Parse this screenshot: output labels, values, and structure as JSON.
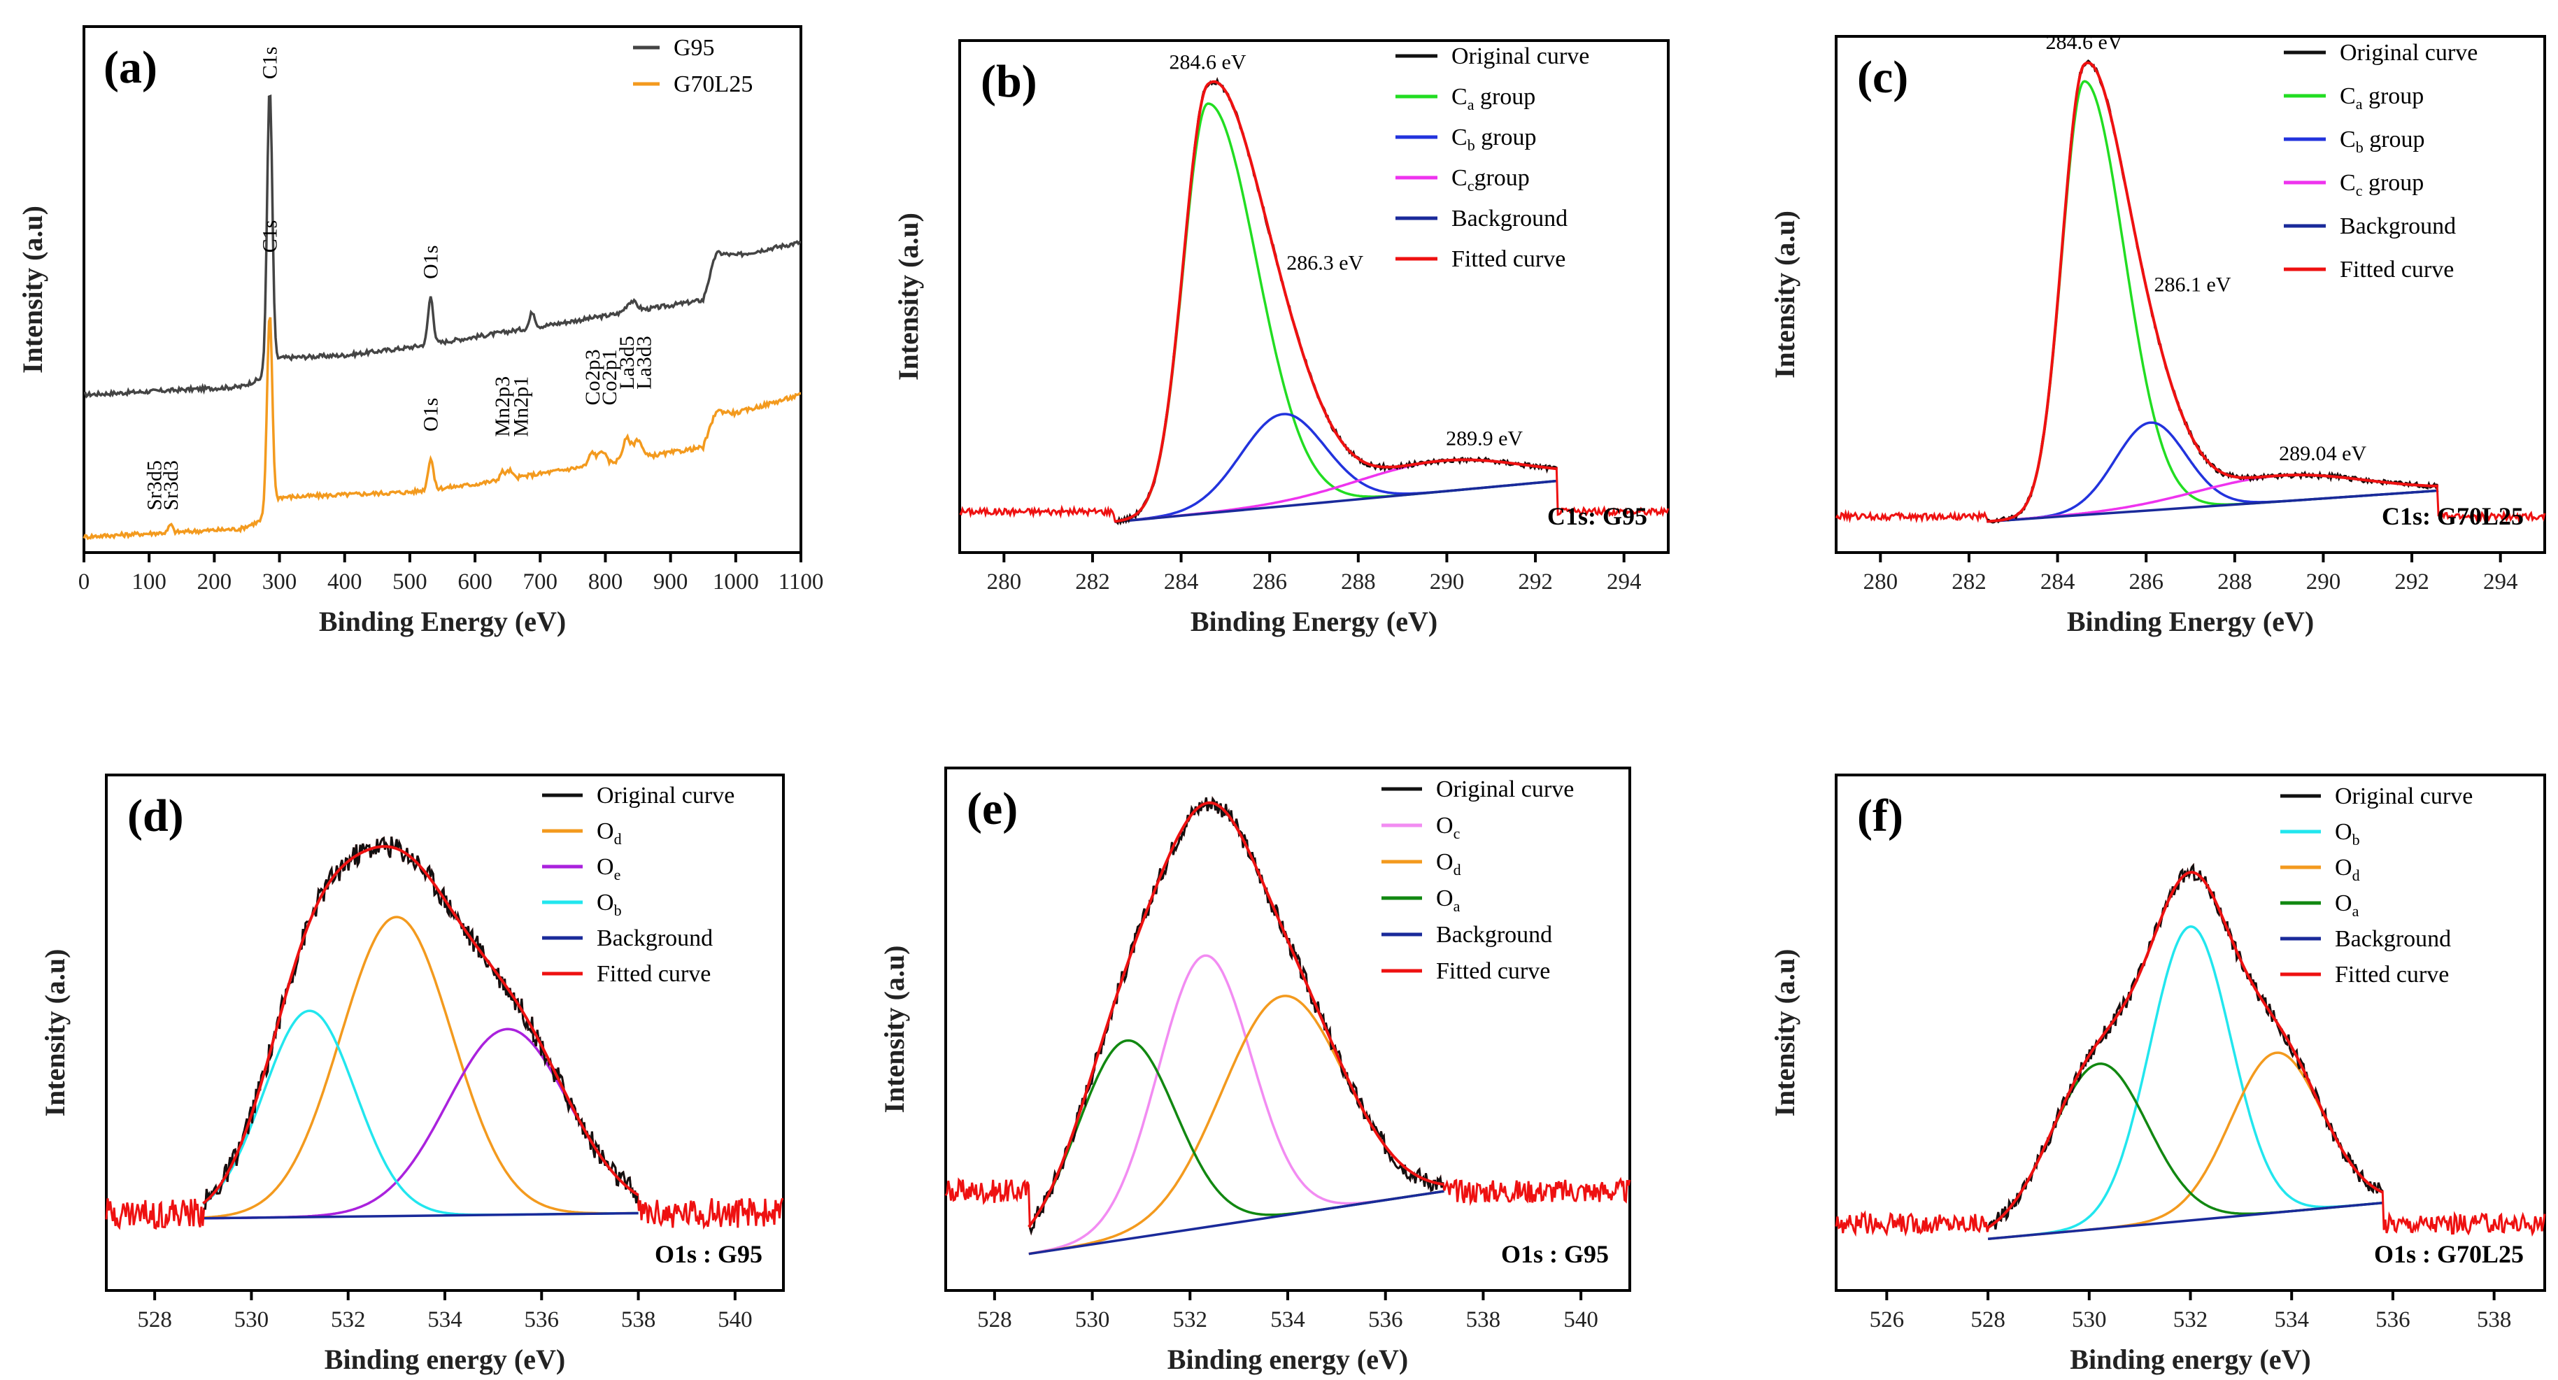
{
  "colors": {
    "original": "#111111",
    "fitted": "#ee1111",
    "background": "#1a2a9a",
    "green": "#22dd22",
    "blue": "#2233dd",
    "magenta": "#ee33ee",
    "orange": "#f39a1e",
    "purple": "#aa22dd",
    "cyan": "#22e6ee",
    "darkgreen": "#118811",
    "pink": "#f28cf2",
    "g95": "#444444"
  },
  "chart_data": [
    {
      "id": "a",
      "type": "line",
      "panel_label": "(a)",
      "xlabel": "Binding Energy (eV)",
      "ylabel": "Intensity (a.u)",
      "xlim": [
        0,
        1100
      ],
      "ylim": [
        0,
        1
      ],
      "xticks": [
        0,
        100,
        200,
        300,
        400,
        500,
        600,
        700,
        800,
        900,
        1000,
        1100
      ],
      "legend": [
        {
          "name": "G95",
          "color": "#444444"
        },
        {
          "name": "G70L25",
          "color": "#f39a1e"
        }
      ],
      "series": [
        {
          "name": "G95",
          "color": "#444444",
          "base": [
            [
              0,
              0.3
            ],
            [
              240,
              0.315
            ],
            [
              270,
              0.33
            ],
            [
              282,
              0.35
            ],
            [
              300,
              0.37
            ],
            [
              400,
              0.375
            ],
            [
              500,
              0.39
            ],
            [
              600,
              0.41
            ],
            [
              700,
              0.43
            ],
            [
              800,
              0.45
            ],
            [
              900,
              0.47
            ],
            [
              950,
              0.48
            ],
            [
              970,
              0.57
            ],
            [
              1000,
              0.565
            ],
            [
              1100,
              0.59
            ]
          ],
          "peaks": [
            [
              285,
              0.53,
              4
            ],
            [
              532,
              0.09,
              4
            ],
            [
              688,
              0.03,
              4
            ],
            [
              840,
              0.02,
              8
            ]
          ]
        },
        {
          "name": "G70L25",
          "color": "#f39a1e",
          "base": [
            [
              0,
              0.03
            ],
            [
              240,
              0.045
            ],
            [
              270,
              0.06
            ],
            [
              282,
              0.08
            ],
            [
              300,
              0.105
            ],
            [
              400,
              0.11
            ],
            [
              500,
              0.115
            ],
            [
              600,
              0.13
            ],
            [
              700,
              0.15
            ],
            [
              800,
              0.17
            ],
            [
              900,
              0.19
            ],
            [
              950,
              0.2
            ],
            [
              970,
              0.27
            ],
            [
              1000,
              0.265
            ],
            [
              1100,
              0.3
            ]
          ],
          "peaks": [
            [
              285,
              0.37,
              4
            ],
            [
              532,
              0.06,
              4
            ],
            [
              642,
              0.015,
              4
            ],
            [
              653,
              0.015,
              4
            ],
            [
              780,
              0.025,
              5
            ],
            [
              795,
              0.025,
              5
            ],
            [
              833,
              0.04,
              6
            ],
            [
              850,
              0.035,
              6
            ],
            [
              133,
              0.015,
              3
            ]
          ]
        }
      ],
      "annotations": [
        {
          "text": "C1s",
          "x": 285,
          "y": 0.9
        },
        {
          "text": "O1s",
          "x": 532,
          "y": 0.52
        },
        {
          "text": "C1s",
          "x": 285,
          "y": 0.57
        },
        {
          "text": "O1s",
          "x": 532,
          "y": 0.23
        },
        {
          "text": "Sr3d5",
          "x": 108,
          "y": 0.08
        },
        {
          "text": "Sr3d3",
          "x": 133,
          "y": 0.08
        },
        {
          "text": "Mn2p3",
          "x": 642,
          "y": 0.22
        },
        {
          "text": "Mn2p1",
          "x": 670,
          "y": 0.22
        },
        {
          "text": "Co2p3",
          "x": 780,
          "y": 0.28
        },
        {
          "text": "Co2p1",
          "x": 806,
          "y": 0.28
        },
        {
          "text": "La3d5",
          "x": 833,
          "y": 0.31
        },
        {
          "text": "La3d3",
          "x": 859,
          "y": 0.31
        }
      ]
    },
    {
      "id": "b",
      "type": "line",
      "panel_label": "(b)",
      "xlabel": "Binding Energy (eV)",
      "ylabel": "Intensity (a.u)",
      "xlim": [
        279,
        295
      ],
      "ylim": [
        0,
        1
      ],
      "xticks": [
        280,
        282,
        284,
        286,
        288,
        290,
        292,
        294
      ],
      "corner_text": "C1s: G95",
      "legend": [
        {
          "name": "Original curve",
          "color": "#111111"
        },
        {
          "name": "C",
          "sub": "a",
          "suffix": " group",
          "color": "#22dd22"
        },
        {
          "name": "C",
          "sub": "b",
          "suffix": " group",
          "color": "#2233dd"
        },
        {
          "name": "C",
          "sub": "c",
          "suffix": "group",
          "color": "#ee33ee"
        },
        {
          "name": "Background",
          "color": "#1a2a9a"
        },
        {
          "name": "Fitted curve",
          "color": "#ee1111"
        }
      ],
      "range": [
        282.5,
        292.5
      ],
      "bg": [
        0.06,
        0.14
      ],
      "components": [
        {
          "name": "Ca group",
          "center": 284.6,
          "amplitude": 0.8,
          "width": 0.55,
          "tail": 1.1,
          "color": "#22dd22"
        },
        {
          "name": "Cb group",
          "center": 286.3,
          "amplitude": 0.18,
          "width": 0.95,
          "color": "#2233dd"
        },
        {
          "name": "Cc group",
          "center": 289.9,
          "amplitude": 0.06,
          "width": 1.9,
          "color": "#ee33ee"
        }
      ],
      "outside_level": 0.08,
      "peak_labels": [
        {
          "text": "284.6 eV",
          "x": 284.6
        },
        {
          "text": "286.3 eV",
          "x": 286.3
        },
        {
          "text": "289.9 eV",
          "x": 289.9
        }
      ]
    },
    {
      "id": "c",
      "type": "line",
      "panel_label": "(c)",
      "xlabel": "Binding Energy (eV)",
      "ylabel": "Intensity (a.u)",
      "xlim": [
        279,
        295
      ],
      "ylim": [
        0,
        1
      ],
      "xticks": [
        280,
        282,
        284,
        286,
        288,
        290,
        292,
        294
      ],
      "corner_text": "C1s: G70L25",
      "legend": [
        {
          "name": "Original curve",
          "color": "#111111"
        },
        {
          "name": "C",
          "sub": "a",
          "suffix": " group",
          "color": "#22dd22"
        },
        {
          "name": "C",
          "sub": "b",
          "suffix": " group",
          "color": "#2233dd"
        },
        {
          "name": "C",
          "sub": "c",
          "suffix": " group",
          "color": "#ee33ee"
        },
        {
          "name": "Background",
          "color": "#1a2a9a"
        },
        {
          "name": "Fitted curve",
          "color": "#ee1111"
        }
      ],
      "range": [
        282.4,
        292.6
      ],
      "bg": [
        0.06,
        0.12
      ],
      "components": [
        {
          "name": "Ca group",
          "center": 284.6,
          "amplitude": 0.84,
          "width": 0.5,
          "tail": 0.9,
          "color": "#22dd22"
        },
        {
          "name": "Cb group",
          "center": 286.1,
          "amplitude": 0.17,
          "width": 0.8,
          "color": "#2233dd"
        },
        {
          "name": "Cc group",
          "center": 289.04,
          "amplitude": 0.05,
          "width": 1.9,
          "color": "#ee33ee"
        }
      ],
      "outside_level": 0.07,
      "peak_labels": [
        {
          "text": "284.6 eV",
          "x": 284.6
        },
        {
          "text": "286.1 eV",
          "x": 286.1
        },
        {
          "text": "289.04 eV",
          "x": 289.04
        }
      ]
    },
    {
      "id": "d",
      "type": "line",
      "panel_label": "(d)",
      "xlabel": "Binding energy (eV)",
      "ylabel": "Intensity (a.u)",
      "xlim": [
        527,
        541
      ],
      "ylim": [
        0,
        1
      ],
      "xticks": [
        528,
        530,
        532,
        534,
        536,
        538,
        540
      ],
      "corner_text": "O1s : G95",
      "legend": [
        {
          "name": "Original curve",
          "color": "#111111"
        },
        {
          "name": "O",
          "sub": "d",
          "suffix": "",
          "color": "#f39a1e"
        },
        {
          "name": "O",
          "sub": "e",
          "suffix": "",
          "color": "#aa22dd"
        },
        {
          "name": "O",
          "sub": "b",
          "suffix": "",
          "color": "#22e6ee"
        },
        {
          "name": "Background",
          "color": "#1a2a9a"
        },
        {
          "name": "Fitted curve",
          "color": "#ee1111"
        }
      ],
      "range": [
        529.0,
        538.0
      ],
      "bg": [
        0.14,
        0.15
      ],
      "components": [
        {
          "name": "Od",
          "center": 533.0,
          "amplitude": 0.58,
          "width": 1.15,
          "color": "#f39a1e"
        },
        {
          "name": "Oe",
          "center": 535.3,
          "amplitude": 0.36,
          "width": 1.25,
          "color": "#aa22dd"
        },
        {
          "name": "Ob",
          "center": 531.2,
          "amplitude": 0.4,
          "width": 0.95,
          "color": "#22e6ee"
        }
      ],
      "outside_level": 0.15
    },
    {
      "id": "e",
      "type": "line",
      "panel_label": "(e)",
      "xlabel": "Binding energy (eV)",
      "ylabel": "Intensity (a.u)",
      "xlim": [
        527,
        541
      ],
      "ylim": [
        0,
        1
      ],
      "xticks": [
        528,
        530,
        532,
        534,
        536,
        538,
        540
      ],
      "corner_text": "O1s : G95",
      "legend": [
        {
          "name": "Original curve",
          "color": "#111111"
        },
        {
          "name": "O",
          "sub": "c",
          "suffix": "",
          "color": "#f28cf2"
        },
        {
          "name": "O",
          "sub": "d",
          "suffix": "",
          "color": "#f39a1e"
        },
        {
          "name": "O",
          "sub": "a",
          "suffix": "",
          "color": "#118811"
        },
        {
          "name": "Background",
          "color": "#1a2a9a"
        },
        {
          "name": "Fitted curve",
          "color": "#ee1111"
        }
      ],
      "range": [
        528.7,
        537.2
      ],
      "bg": [
        0.07,
        0.19
      ],
      "components": [
        {
          "name": "Oc",
          "center": 532.3,
          "amplitude": 0.52,
          "width": 0.95,
          "color": "#f28cf2"
        },
        {
          "name": "Od",
          "center": 533.9,
          "amplitude": 0.42,
          "width": 1.25,
          "color": "#f39a1e"
        },
        {
          "name": "Oa",
          "center": 530.7,
          "amplitude": 0.38,
          "width": 1.0,
          "color": "#118811"
        }
      ],
      "outside_level": 0.19
    },
    {
      "id": "f",
      "type": "line",
      "panel_label": "(f)",
      "xlabel": "Binding energy (eV)",
      "ylabel": "Intensity (a.u)",
      "xlim": [
        525,
        539
      ],
      "ylim": [
        0,
        1
      ],
      "xticks": [
        526,
        528,
        530,
        532,
        534,
        536,
        538
      ],
      "corner_text": "O1s : G70L25",
      "legend": [
        {
          "name": "Original curve",
          "color": "#111111"
        },
        {
          "name": "O",
          "sub": "b",
          "suffix": "",
          "color": "#22e6ee"
        },
        {
          "name": "O",
          "sub": "d",
          "suffix": "",
          "color": "#f39a1e"
        },
        {
          "name": "O",
          "sub": "a",
          "suffix": "",
          "color": "#118811"
        },
        {
          "name": "Background",
          "color": "#1a2a9a"
        },
        {
          "name": "Fitted curve",
          "color": "#ee1111"
        }
      ],
      "range": [
        528.0,
        535.8
      ],
      "bg": [
        0.1,
        0.17
      ],
      "components": [
        {
          "name": "Ob",
          "center": 532.0,
          "amplitude": 0.57,
          "width": 0.8,
          "color": "#22e6ee"
        },
        {
          "name": "Od",
          "center": 533.7,
          "amplitude": 0.31,
          "width": 0.9,
          "color": "#f39a1e"
        },
        {
          "name": "Oa",
          "center": 530.2,
          "amplitude": 0.32,
          "width": 0.95,
          "color": "#118811"
        }
      ],
      "outside_level": 0.13
    }
  ]
}
